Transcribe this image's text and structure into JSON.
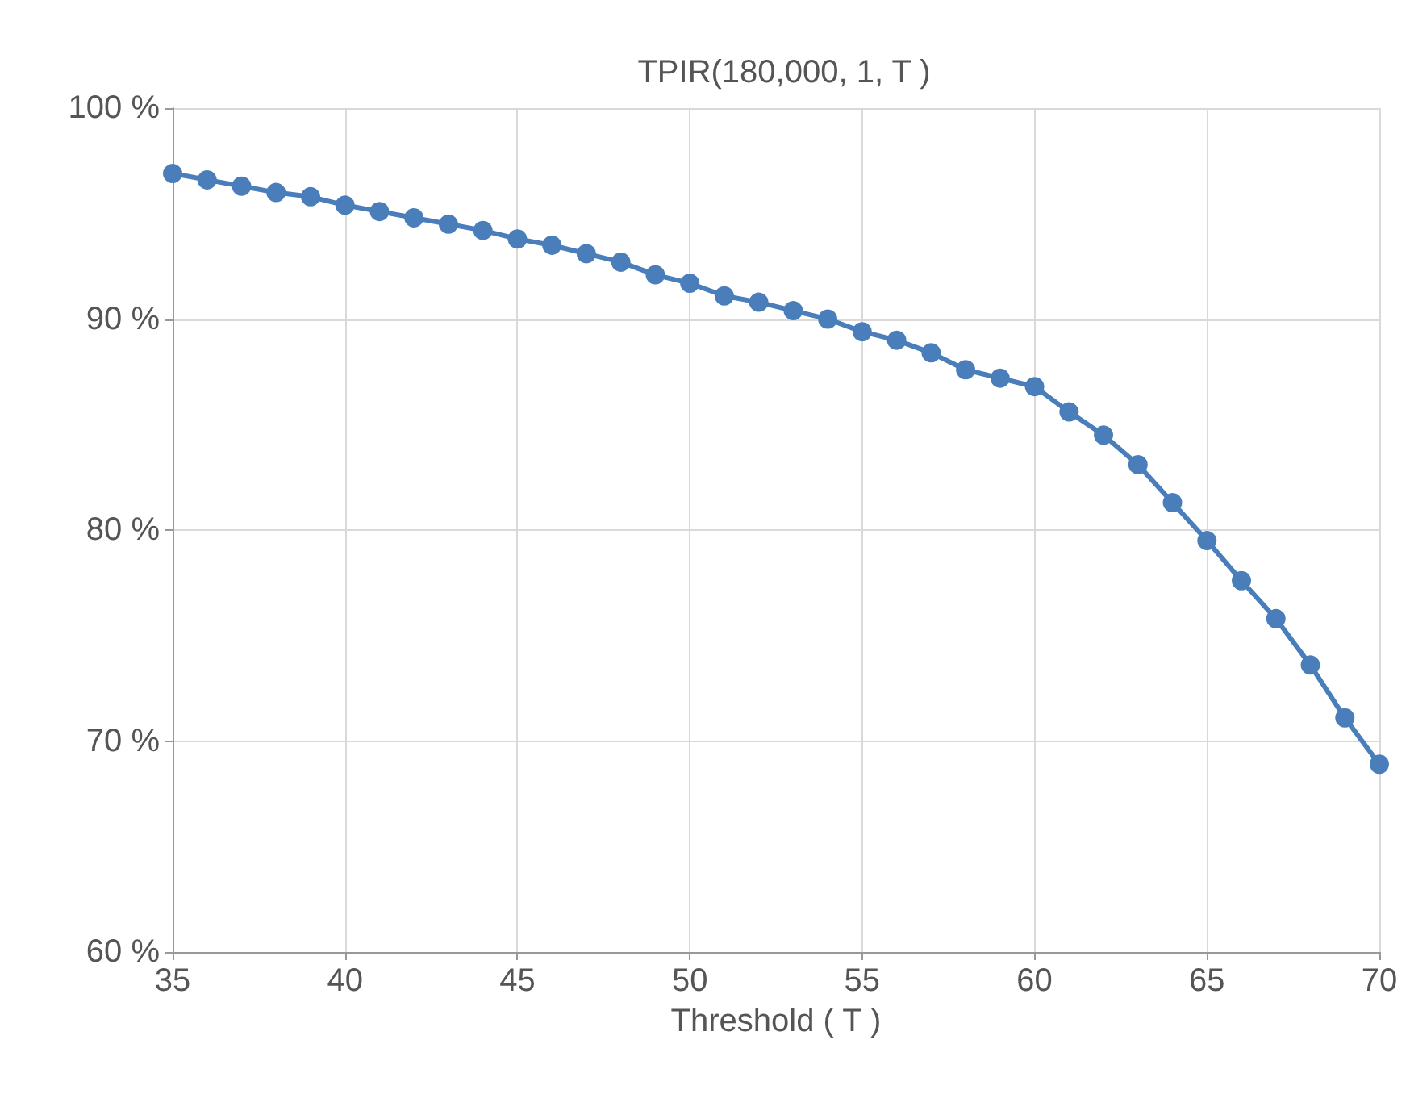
{
  "chart_data": {
    "type": "line",
    "title": "TPIR(180,000, 1, T )",
    "xlabel": "Threshold ( T )",
    "x": [
      35,
      36,
      37,
      38,
      39,
      40,
      41,
      42,
      43,
      44,
      45,
      46,
      47,
      48,
      49,
      50,
      51,
      52,
      53,
      54,
      55,
      56,
      57,
      58,
      59,
      60,
      61,
      62,
      63,
      64,
      65,
      66,
      67,
      68,
      69,
      70
    ],
    "series": [
      {
        "color": "#4a7ebb",
        "values": [
          96.9,
          96.6,
          96.3,
          96.0,
          95.8,
          95.4,
          95.1,
          94.8,
          94.5,
          94.2,
          93.8,
          93.5,
          93.1,
          92.7,
          92.1,
          91.7,
          91.1,
          90.8,
          90.4,
          90.0,
          89.4,
          89.0,
          88.4,
          87.6,
          87.2,
          86.8,
          85.6,
          84.5,
          83.1,
          81.3,
          79.5,
          77.6,
          75.8,
          73.6,
          71.1,
          68.9
        ]
      }
    ],
    "xlim": [
      35,
      70
    ],
    "xticks": [
      35,
      40,
      45,
      50,
      55,
      60,
      65,
      70
    ],
    "ylim": [
      60,
      100
    ],
    "yticks": [
      {
        "value": 60,
        "label": "60 %"
      },
      {
        "value": 70,
        "label": "70 %"
      },
      {
        "value": 80,
        "label": "80 %"
      },
      {
        "value": 90,
        "label": "90 %"
      },
      {
        "value": 100,
        "label": "100 %"
      }
    ],
    "grid": true,
    "marker": "circle",
    "line_style": "solid"
  }
}
